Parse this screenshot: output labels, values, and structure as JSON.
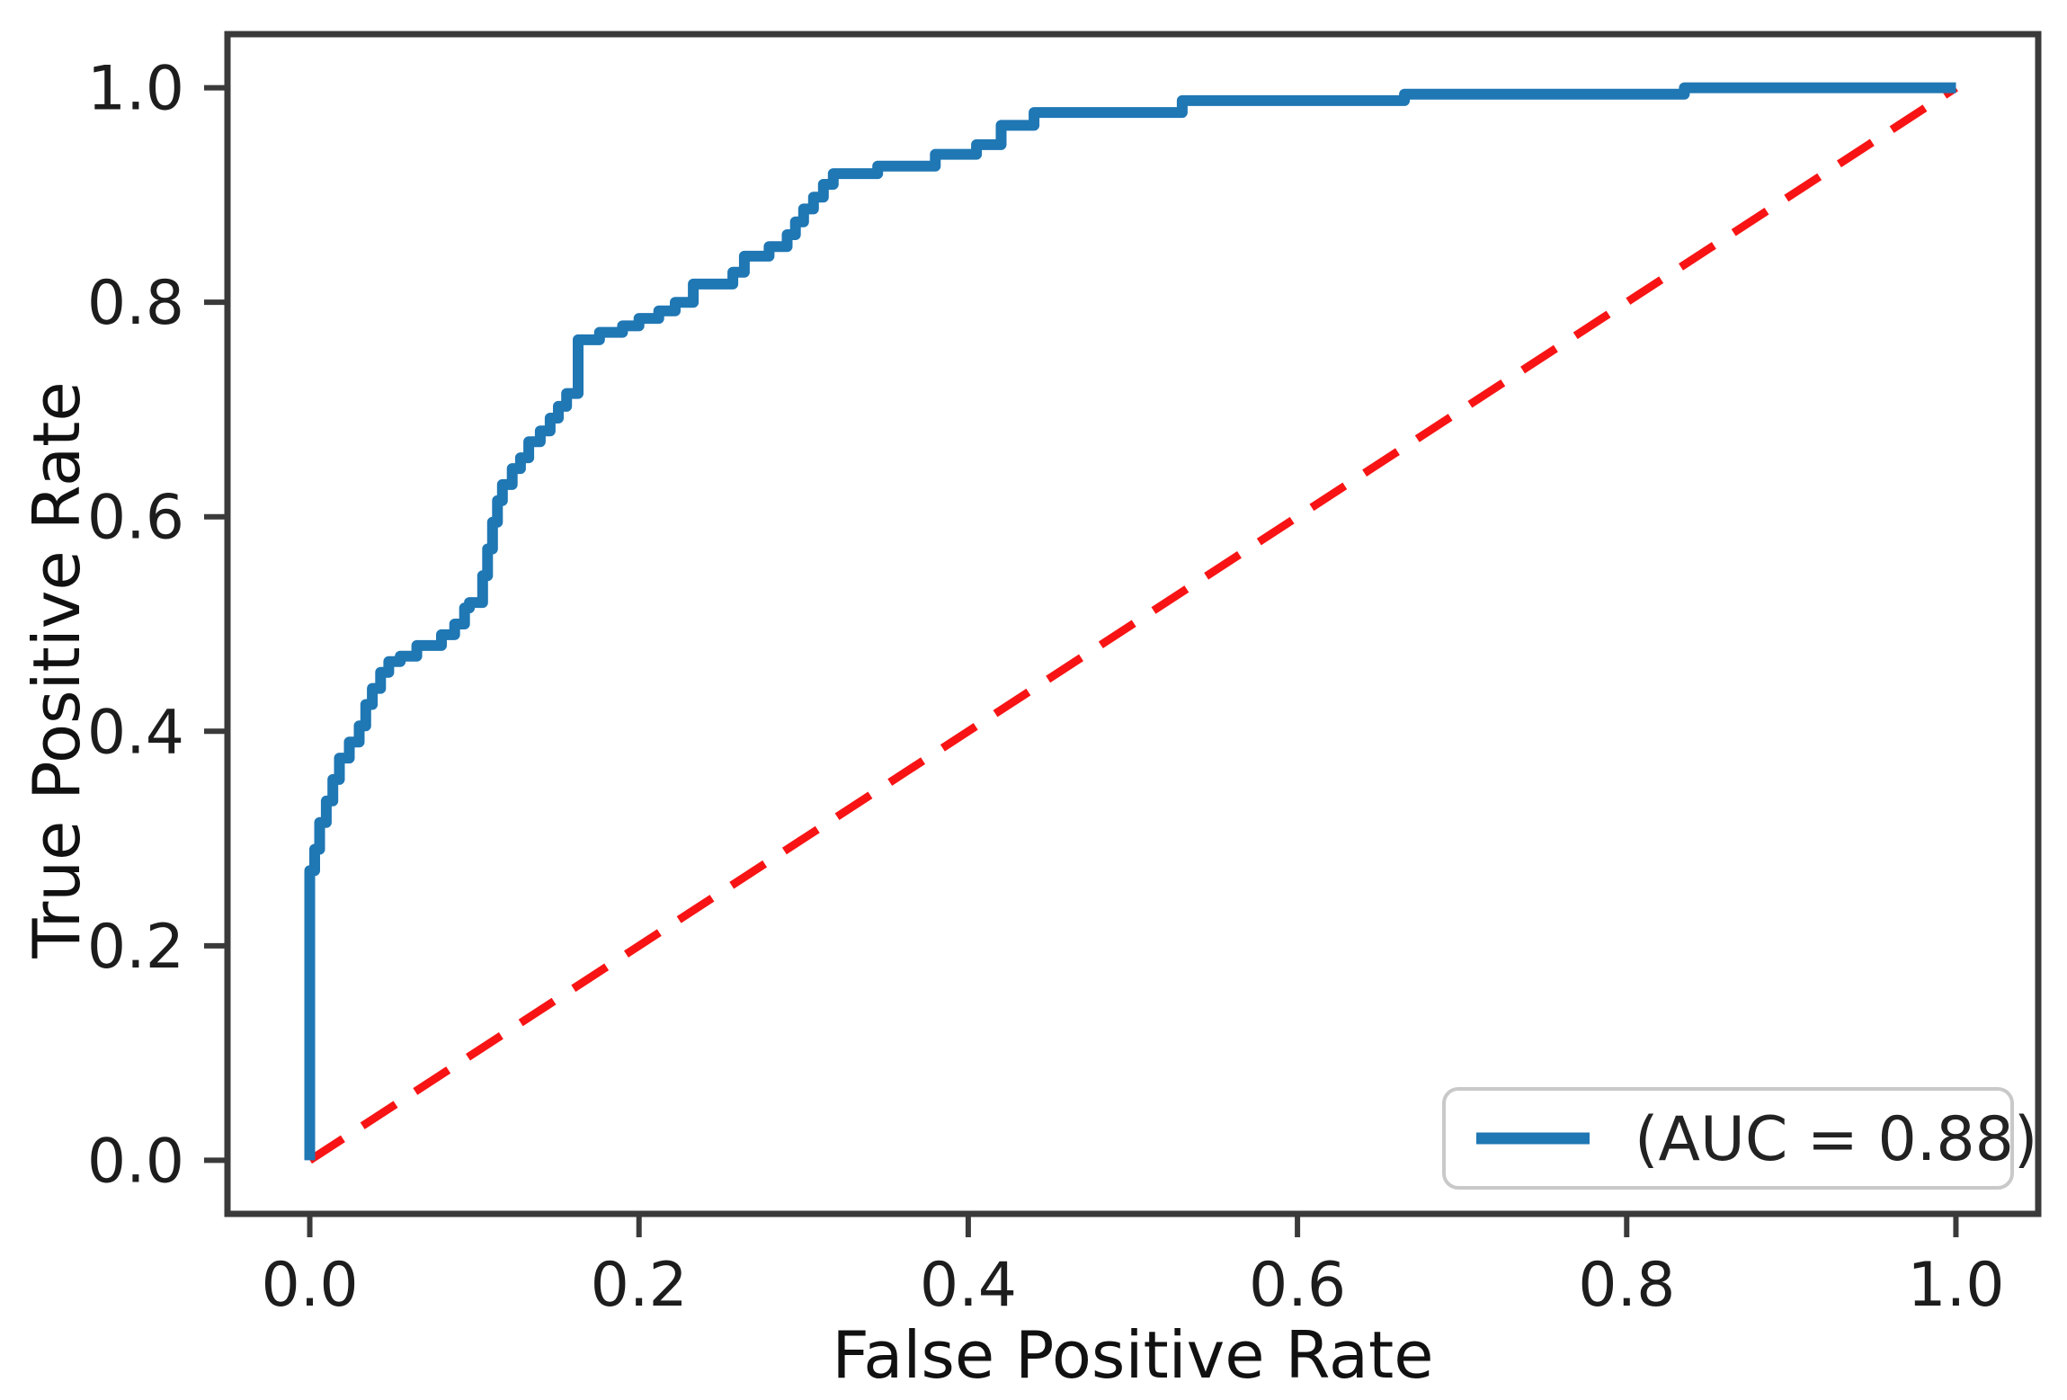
{
  "chart_data": {
    "type": "line",
    "subtype": "roc-curve",
    "title": "",
    "xlabel": "False Positive Rate",
    "ylabel": "True Positive Rate",
    "x_ticks": [
      "0.0",
      "0.2",
      "0.4",
      "0.6",
      "0.8",
      "1.0"
    ],
    "x_tick_values": [
      0,
      0.2,
      0.4,
      0.6,
      0.8,
      1.0
    ],
    "y_ticks": [
      "0.0",
      "0.2",
      "0.4",
      "0.6",
      "0.8",
      "1.0"
    ],
    "y_tick_values": [
      0,
      0.2,
      0.4,
      0.6,
      0.8,
      1.0
    ],
    "axis_range": {
      "x": [
        -0.05,
        1.05
      ],
      "y": [
        -0.05,
        1.05
      ]
    },
    "grid": false,
    "legend": {
      "label": "(AUC = 0.88)",
      "position": "lower right",
      "auc": 0.88
    },
    "colors": {
      "roc": "#1f77b4",
      "chance": "#f81414",
      "spine": "#3a3a3a",
      "text": "#1d1d1d",
      "legend_border": "#c9c9c9"
    },
    "series": [
      {
        "name": "ROC curve",
        "color": "#1f77b4",
        "style": "solid",
        "points": [
          [
            0,
            0
          ],
          [
            0,
            0.27
          ],
          [
            0.003,
            0.27
          ],
          [
            0.003,
            0.29
          ],
          [
            0.006,
            0.29
          ],
          [
            0.006,
            0.315
          ],
          [
            0.01,
            0.315
          ],
          [
            0.01,
            0.335
          ],
          [
            0.014,
            0.335
          ],
          [
            0.014,
            0.355
          ],
          [
            0.018,
            0.355
          ],
          [
            0.018,
            0.375
          ],
          [
            0.024,
            0.375
          ],
          [
            0.024,
            0.39
          ],
          [
            0.03,
            0.39
          ],
          [
            0.03,
            0.405
          ],
          [
            0.034,
            0.405
          ],
          [
            0.034,
            0.425
          ],
          [
            0.038,
            0.425
          ],
          [
            0.038,
            0.44
          ],
          [
            0.043,
            0.44
          ],
          [
            0.043,
            0.455
          ],
          [
            0.048,
            0.455
          ],
          [
            0.048,
            0.465
          ],
          [
            0.055,
            0.465
          ],
          [
            0.055,
            0.47
          ],
          [
            0.065,
            0.47
          ],
          [
            0.065,
            0.48
          ],
          [
            0.08,
            0.48
          ],
          [
            0.08,
            0.49
          ],
          [
            0.088,
            0.49
          ],
          [
            0.088,
            0.5
          ],
          [
            0.094,
            0.5
          ],
          [
            0.094,
            0.515
          ],
          [
            0.097,
            0.515
          ],
          [
            0.097,
            0.52
          ],
          [
            0.105,
            0.52
          ],
          [
            0.105,
            0.545
          ],
          [
            0.108,
            0.545
          ],
          [
            0.108,
            0.57
          ],
          [
            0.111,
            0.57
          ],
          [
            0.111,
            0.595
          ],
          [
            0.114,
            0.595
          ],
          [
            0.114,
            0.615
          ],
          [
            0.117,
            0.615
          ],
          [
            0.117,
            0.63
          ],
          [
            0.123,
            0.63
          ],
          [
            0.123,
            0.645
          ],
          [
            0.128,
            0.645
          ],
          [
            0.128,
            0.655
          ],
          [
            0.133,
            0.655
          ],
          [
            0.133,
            0.67
          ],
          [
            0.14,
            0.67
          ],
          [
            0.14,
            0.68
          ],
          [
            0.146,
            0.68
          ],
          [
            0.146,
            0.692
          ],
          [
            0.151,
            0.692
          ],
          [
            0.151,
            0.703
          ],
          [
            0.156,
            0.703
          ],
          [
            0.156,
            0.715
          ],
          [
            0.163,
            0.715
          ],
          [
            0.163,
            0.765
          ],
          [
            0.176,
            0.765
          ],
          [
            0.176,
            0.772
          ],
          [
            0.19,
            0.772
          ],
          [
            0.19,
            0.778
          ],
          [
            0.2,
            0.778
          ],
          [
            0.2,
            0.785
          ],
          [
            0.212,
            0.785
          ],
          [
            0.212,
            0.792
          ],
          [
            0.222,
            0.792
          ],
          [
            0.222,
            0.8
          ],
          [
            0.233,
            0.8
          ],
          [
            0.233,
            0.817
          ],
          [
            0.257,
            0.817
          ],
          [
            0.257,
            0.828
          ],
          [
            0.264,
            0.828
          ],
          [
            0.264,
            0.843
          ],
          [
            0.279,
            0.843
          ],
          [
            0.279,
            0.852
          ],
          [
            0.29,
            0.852
          ],
          [
            0.29,
            0.863
          ],
          [
            0.295,
            0.863
          ],
          [
            0.295,
            0.875
          ],
          [
            0.3,
            0.875
          ],
          [
            0.3,
            0.887
          ],
          [
            0.306,
            0.887
          ],
          [
            0.306,
            0.898
          ],
          [
            0.312,
            0.898
          ],
          [
            0.312,
            0.91
          ],
          [
            0.318,
            0.91
          ],
          [
            0.318,
            0.92
          ],
          [
            0.345,
            0.92
          ],
          [
            0.345,
            0.927
          ],
          [
            0.38,
            0.927
          ],
          [
            0.38,
            0.938
          ],
          [
            0.405,
            0.938
          ],
          [
            0.405,
            0.947
          ],
          [
            0.42,
            0.947
          ],
          [
            0.42,
            0.965
          ],
          [
            0.44,
            0.965
          ],
          [
            0.44,
            0.977
          ],
          [
            0.53,
            0.977
          ],
          [
            0.53,
            0.988
          ],
          [
            0.665,
            0.988
          ],
          [
            0.665,
            0.994
          ],
          [
            0.835,
            0.994
          ],
          [
            0.835,
            1
          ],
          [
            1,
            1
          ]
        ]
      },
      {
        "name": "Chance diagonal",
        "color": "#f81414",
        "style": "dashed",
        "points": [
          [
            0,
            0
          ],
          [
            1,
            1
          ]
        ]
      }
    ]
  }
}
